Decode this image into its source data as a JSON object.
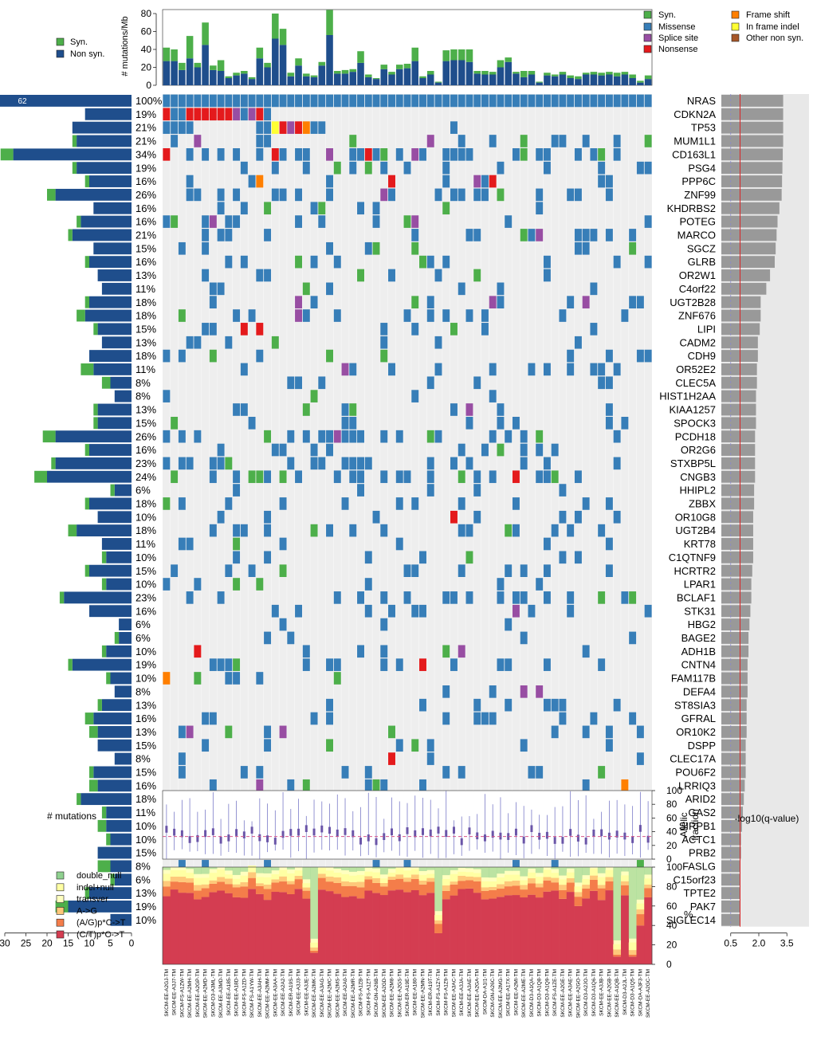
{
  "chart_data": {
    "type": "heatmap",
    "top_panel": {
      "ylabel": "# mutations/Mb",
      "yticks": [
        0,
        20,
        40,
        60,
        80
      ],
      "legend": [
        "Syn.",
        "Non syn."
      ],
      "nonsyn": [
        27,
        27,
        17,
        30,
        20,
        45,
        17,
        16,
        8,
        11,
        13,
        7,
        30,
        20,
        52,
        45,
        10,
        22,
        10,
        9,
        22,
        56,
        13,
        13,
        15,
        25,
        9,
        7,
        18,
        12,
        18,
        19,
        27,
        8,
        12,
        3,
        27,
        28,
        28,
        26,
        13,
        12,
        12,
        20,
        26,
        13,
        9,
        12,
        3,
        11,
        10,
        12,
        8,
        7,
        12,
        12,
        11,
        12,
        10,
        12,
        8,
        3,
        7
      ],
      "syn": [
        15,
        13,
        8,
        25,
        5,
        25,
        5,
        12,
        2,
        3,
        3,
        2,
        12,
        5,
        28,
        18,
        4,
        8,
        3,
        2,
        4,
        28,
        3,
        4,
        3,
        13,
        3,
        1,
        5,
        3,
        5,
        5,
        15,
        2,
        4,
        1,
        12,
        12,
        12,
        14,
        3,
        4,
        3,
        8,
        5,
        2,
        7,
        4,
        1,
        3,
        2,
        3,
        3,
        3,
        2,
        3,
        3,
        3,
        4,
        3,
        4,
        2,
        4
      ]
    },
    "mutation_legend": [
      "Syn.",
      "Missense",
      "Splice site",
      "Nonsense",
      "Frame shift",
      "In frame indel",
      "Other non syn."
    ],
    "mutation_colors": [
      "#4daf4a",
      "#377eb8",
      "#984ea3",
      "#e41a1c",
      "#ff7f00",
      "#ffff33",
      "#a65628"
    ],
    "genes": [
      "NRAS",
      "CDKN2A",
      "TP53",
      "MUM1L1",
      "CD163L1",
      "PSG4",
      "PPP6C",
      "ZNF99",
      "KHDRBS2",
      "POTEG",
      "MARCO",
      "SGCZ",
      "GLRB",
      "OR2W1",
      "C4orf22",
      "UGT2B28",
      "ZNF676",
      "LIPI",
      "CADM2",
      "CDH9",
      "OR52E2",
      "CLEC5A",
      "HIST1H2AA",
      "KIAA1257",
      "SPOCK3",
      "PCDH18",
      "OR2G6",
      "STXBP5L",
      "CNGB3",
      "HHIPL2",
      "ZBBX",
      "OR10G8",
      "UGT2B4",
      "KRT78",
      "C1QTNF9",
      "HCRTR2",
      "LPAR1",
      "BCLAF1",
      "STK31",
      "HBG2",
      "BAGE2",
      "ADH1B",
      "CNTN4",
      "FAM117B",
      "DEFA4",
      "ST8SIA3",
      "GFRAL",
      "OR10K2",
      "DSPP",
      "CLEC17A",
      "POU6F2",
      "LRRIQ3",
      "ARID2",
      "GAS2",
      "SIRPB1",
      "ACTC1",
      "PRB2",
      "FASLG",
      "C15orf23",
      "TPTE2",
      "PAK7",
      "SIGLEC14"
    ],
    "percents": [
      "100%",
      "19%",
      "21%",
      "21%",
      "34%",
      "19%",
      "16%",
      "26%",
      "16%",
      "16%",
      "21%",
      "15%",
      "16%",
      "13%",
      "11%",
      "18%",
      "18%",
      "15%",
      "13%",
      "18%",
      "11%",
      "8%",
      "8%",
      "13%",
      "15%",
      "26%",
      "16%",
      "23%",
      "24%",
      "6%",
      "18%",
      "10%",
      "18%",
      "11%",
      "10%",
      "15%",
      "10%",
      "23%",
      "16%",
      "6%",
      "6%",
      "10%",
      "19%",
      "10%",
      "8%",
      "13%",
      "16%",
      "13%",
      "15%",
      "8%",
      "15%",
      "16%",
      "18%",
      "11%",
      "10%",
      "10%",
      "15%",
      "8%",
      "6%",
      "13%",
      "19%",
      "10%"
    ],
    "left_bar": {
      "xlabel": "# mutations",
      "xticks": [
        30,
        25,
        20,
        15,
        10,
        5,
        0
      ],
      "label_first": "62",
      "nonsyn": [
        62,
        11,
        14,
        13,
        28,
        13,
        10,
        18,
        9,
        12,
        14,
        9,
        10,
        8,
        7,
        10,
        11,
        8,
        7,
        10,
        9,
        5,
        4,
        8,
        8,
        18,
        10,
        18,
        20,
        4,
        10,
        8,
        13,
        7,
        6,
        10,
        6,
        16,
        10,
        3,
        3,
        6,
        14,
        5,
        4,
        7,
        9,
        8,
        8,
        4,
        9,
        8,
        12,
        6,
        6,
        5,
        8,
        5,
        4,
        10,
        15,
        5
      ],
      "syn": [
        0,
        0,
        0,
        1,
        3,
        1,
        1,
        2,
        0,
        1,
        1,
        0,
        1,
        0,
        0,
        1,
        2,
        1,
        0,
        0,
        3,
        2,
        0,
        1,
        1,
        3,
        1,
        1,
        3,
        1,
        1,
        0,
        2,
        0,
        1,
        1,
        1,
        1,
        0,
        0,
        1,
        1,
        1,
        1,
        0,
        1,
        2,
        2,
        0,
        0,
        1,
        2,
        1,
        1,
        2,
        1,
        0,
        3,
        1,
        1,
        3,
        0
      ]
    },
    "right_bar": {
      "xlabel": "-log10(q-value)",
      "xticks": [
        "0.5",
        "2.0",
        "3.5"
      ],
      "xlim": [
        0,
        4.2
      ],
      "threshold": 1,
      "values": [
        3.3,
        3.3,
        3.3,
        3.3,
        3.28,
        3.26,
        3.24,
        3.22,
        3.1,
        3.0,
        2.95,
        2.9,
        2.85,
        2.6,
        2.4,
        2.1,
        2.1,
        2.05,
        1.95,
        1.95,
        1.9,
        1.9,
        1.85,
        1.85,
        1.85,
        1.8,
        1.8,
        1.8,
        1.8,
        1.75,
        1.75,
        1.7,
        1.7,
        1.7,
        1.7,
        1.65,
        1.6,
        1.6,
        1.55,
        1.5,
        1.45,
        1.45,
        1.4,
        1.4,
        1.4,
        1.35,
        1.35,
        1.35,
        1.3,
        1.3,
        1.3,
        1.25,
        1.2,
        1.15,
        1.1,
        1.05,
        1.05,
        1.0,
        1.0,
        1.0,
        1.0,
        1.0
      ]
    },
    "af_panel": {
      "ylabel": "Allelic fraction",
      "yticks": [
        0,
        20,
        40,
        60,
        80,
        100
      ],
      "median_line": 33
    },
    "spectrum_panel": {
      "ylabel": "%",
      "yticks": [
        0,
        20,
        40,
        60,
        80,
        100
      ],
      "legend": [
        "double_null",
        "indel+null",
        "transver",
        "A->G",
        "(A/G)p*C->T",
        "(C/T)p*C->T"
      ],
      "colors": [
        "#8fd18f",
        "#ffffa3",
        "#ffffbf",
        "#fec87a",
        "#f47d4a",
        "#d43d51"
      ]
    },
    "samples": [
      "SKCM-EE-A2GJ-TM",
      "SKCM-EE-A3J7-TM",
      "SKCM-FS-A1ZW-TM",
      "SKCM-EE-A2MH-TM",
      "SKCM-EE-A2GP-TM",
      "SKCM-EE-A2MD-TM",
      "SKCM-D3-A3ML-TM",
      "SKCM-EE-A3MD-TM",
      "SKCM-EE-A185-TM",
      "SKCM-EE-A18D-TM",
      "SKCM-FS-A1ZD-TM",
      "SKCM-FS-A1YW-TM",
      "SKCM-EE-A3AH-TM",
      "SKCM-EE-A2MM-TM",
      "SKCM-EE-A3AA-TM",
      "SKCM-EE-A2A2-TM",
      "SKCM-ER-A19S-TM",
      "SKCM-EE-A3J3-TM",
      "SKCM-EE-A3JE-TM",
      "SKCM-EE-A2MK-TM",
      "SKCM-EE-A3AG-TM",
      "SKCM-EE-A2MC-TM",
      "SKCM-EE-A2MS-TM",
      "SKCM-EE-A2A0-TM",
      "SKCM-EE-A2MR-TM",
      "SKCM-FS-A1ZB-TM",
      "SKCM-FS-A1ZT-TM",
      "SKCM-GN-A26B-TM",
      "SKCM-EE-A2GD-TM",
      "SKCM-EE-A2M8-TM",
      "SKCM-EE-A2GS-TM",
      "SKCM-ER-A19E-TM",
      "SKCM-EE-A180-TM",
      "SKCM-EE-A2MN-TM",
      "SKCM-ER-A19T-TM",
      "SKCM-FS-A1ZY-TM",
      "SKCM-FS-A1Z9-TM",
      "SKCM-EE-A3AC-TM",
      "SKCM-EE-A3JA-TM",
      "SKCM-EE-A3AE-TM",
      "SKCM-EE-A2GA-TM",
      "SKCM-DA-A1I1-TM",
      "SKCM-GN-A26C-TM",
      "SKCM-EE-A2MG-TM",
      "SKCM-EE-A17X-TM",
      "SKCM-EE-A2MI-TM",
      "SKCM-EE-A2ME-TM",
      "SKCM-D3-A1QA-TM",
      "SKCM-D3-A1Q8-TM",
      "SKCM-D3-A1Q9-TM",
      "SKCM-FS-A1ZE-TM",
      "SKCM-EE-A2GE-TM",
      "SKCM-EE-A3AE-TM",
      "SKCM-EE-A2GO-TM",
      "SKCM-D3-A2JO-TM",
      "SKCM-D3-A1Q6-TM",
      "SKCM-EE-A3JB-TM",
      "SKCM-EE-A2GB-TM",
      "SKCM-EE-A1QB-TM",
      "SKCM-D3-A2JL-TM",
      "SKCM-D3-A1Q5-TM",
      "SKCM-DA-A3F3-TM",
      "SKCM-EE-A2GC-TM"
    ]
  }
}
